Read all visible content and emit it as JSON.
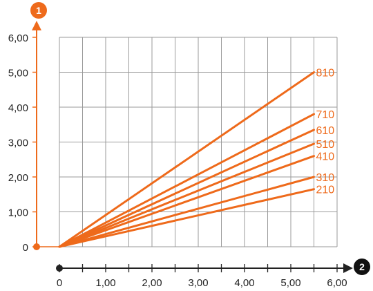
{
  "chart_data": {
    "type": "line",
    "x_ticks": [
      "0",
      "1,00",
      "2,00",
      "3,00",
      "4,00",
      "5,00",
      "6,00"
    ],
    "y_ticks": [
      "0",
      "1,00",
      "2,00",
      "3,00",
      "4,00",
      "5,00",
      "6,00"
    ],
    "xlim": [
      0,
      6
    ],
    "ylim": [
      0,
      6
    ],
    "grid": true,
    "y_axis_badge": "1",
    "x_axis_badge": "2",
    "colors": {
      "series": "#ee6a1b",
      "grid": "#9a9a9a",
      "y_axis": "#ee6a1b",
      "x_axis": "#222222"
    },
    "series": [
      {
        "name": "810",
        "x": [
          0,
          5.5
        ],
        "y": [
          0,
          5.0
        ]
      },
      {
        "name": "710",
        "x": [
          0,
          5.5
        ],
        "y": [
          0,
          3.8
        ]
      },
      {
        "name": "610",
        "x": [
          0,
          5.5
        ],
        "y": [
          0,
          3.35
        ]
      },
      {
        "name": "510",
        "x": [
          0,
          5.5
        ],
        "y": [
          0,
          2.95
        ]
      },
      {
        "name": "410",
        "x": [
          0,
          5.5
        ],
        "y": [
          0,
          2.6
        ]
      },
      {
        "name": "310",
        "x": [
          0,
          5.5
        ],
        "y": [
          0,
          2.0
        ]
      },
      {
        "name": "210",
        "x": [
          0,
          5.5
        ],
        "y": [
          0,
          1.65
        ]
      }
    ]
  }
}
